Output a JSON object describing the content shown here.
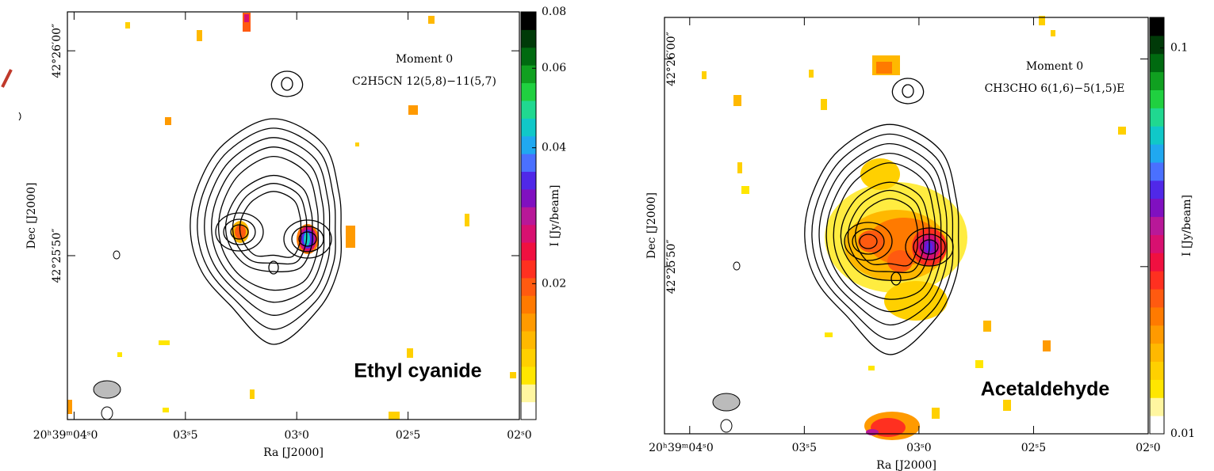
{
  "chart_data": [
    {
      "type": "image",
      "title": "Moment 0",
      "subtitle": "C2H5CN 12(5,8)−11(5,7)",
      "annotation": "Ethyl cyanide",
      "xlabel": "Ra [J2000]",
      "ylabel": "Dec [J2000]",
      "xlim": [
        4.03,
        2.0
      ],
      "xticks": [
        {
          "value": 4.0,
          "label": "20ʰ39ᵐ04ˢ0"
        },
        {
          "value": 3.5,
          "label": "03ˢ5"
        },
        {
          "value": 3.0,
          "label": "03ˢ0"
        },
        {
          "value": 2.5,
          "label": "02ˢ5"
        },
        {
          "value": 2.0,
          "label": "02ˢ0"
        }
      ],
      "ylim": [
        42,
        61.9
      ],
      "yticks": [
        {
          "value": 60,
          "label": "42°26′00″"
        },
        {
          "value": 50,
          "label": "42°25′50″"
        }
      ],
      "colorbar": {
        "label": "I [Jy/beam]",
        "zlim": [
          0.01,
          0.08
        ],
        "log": true,
        "zticks": [
          0.02,
          0.04,
          0.06,
          0.08
        ],
        "colormap": [
          "#ffffff",
          "#fff6a0",
          "#ffe600",
          "#ffd000",
          "#ffb800",
          "#ff9a00",
          "#ff7a00",
          "#ff5a10",
          "#ff3020",
          "#f01040",
          "#d81070",
          "#b81898",
          "#8010c0",
          "#5028e8",
          "#4a70ff",
          "#20a8f0",
          "#10c8c8",
          "#20d890",
          "#20d040",
          "#10a020",
          "#006a10",
          "#003a08",
          "#000000"
        ]
      }
    },
    {
      "type": "image",
      "title": "Moment 0",
      "subtitle": "CH3CHO 6(1,6)−5(1,5)E",
      "annotation": "Acetaldehyde",
      "xlabel": "Ra [J2000]",
      "ylabel": "Dec [J2000]",
      "xlim": [
        4.11,
        2.0
      ],
      "xticks": [
        {
          "value": 4.0,
          "label": "20ʰ39ᵐ04ˢ0"
        },
        {
          "value": 3.5,
          "label": "03ˢ5"
        },
        {
          "value": 3.0,
          "label": "03ˢ0"
        },
        {
          "value": 2.5,
          "label": "02ˢ5"
        },
        {
          "value": 2.0,
          "label": "02ˢ0"
        }
      ],
      "ylim": [
        41.95,
        62.0
      ],
      "yticks": [
        {
          "value": 60,
          "label": "42°26′00″"
        },
        {
          "value": 50,
          "label": "42°25′50″"
        }
      ],
      "colorbar": {
        "label": "I [Jy/beam]",
        "zlim": [
          0.01,
          0.12
        ],
        "log": true,
        "zticks": [
          0.01,
          0.1
        ],
        "colormap": [
          "#ffffff",
          "#fff6a0",
          "#ffe600",
          "#ffd000",
          "#ffb800",
          "#ff9a00",
          "#ff7a00",
          "#ff5a10",
          "#ff3020",
          "#f01040",
          "#d81070",
          "#b81898",
          "#8010c0",
          "#5028e8",
          "#4a70ff",
          "#20a8f0",
          "#10c8c8",
          "#20d890",
          "#20d040",
          "#10a020",
          "#006a10",
          "#003a08",
          "#000000"
        ]
      }
    }
  ]
}
